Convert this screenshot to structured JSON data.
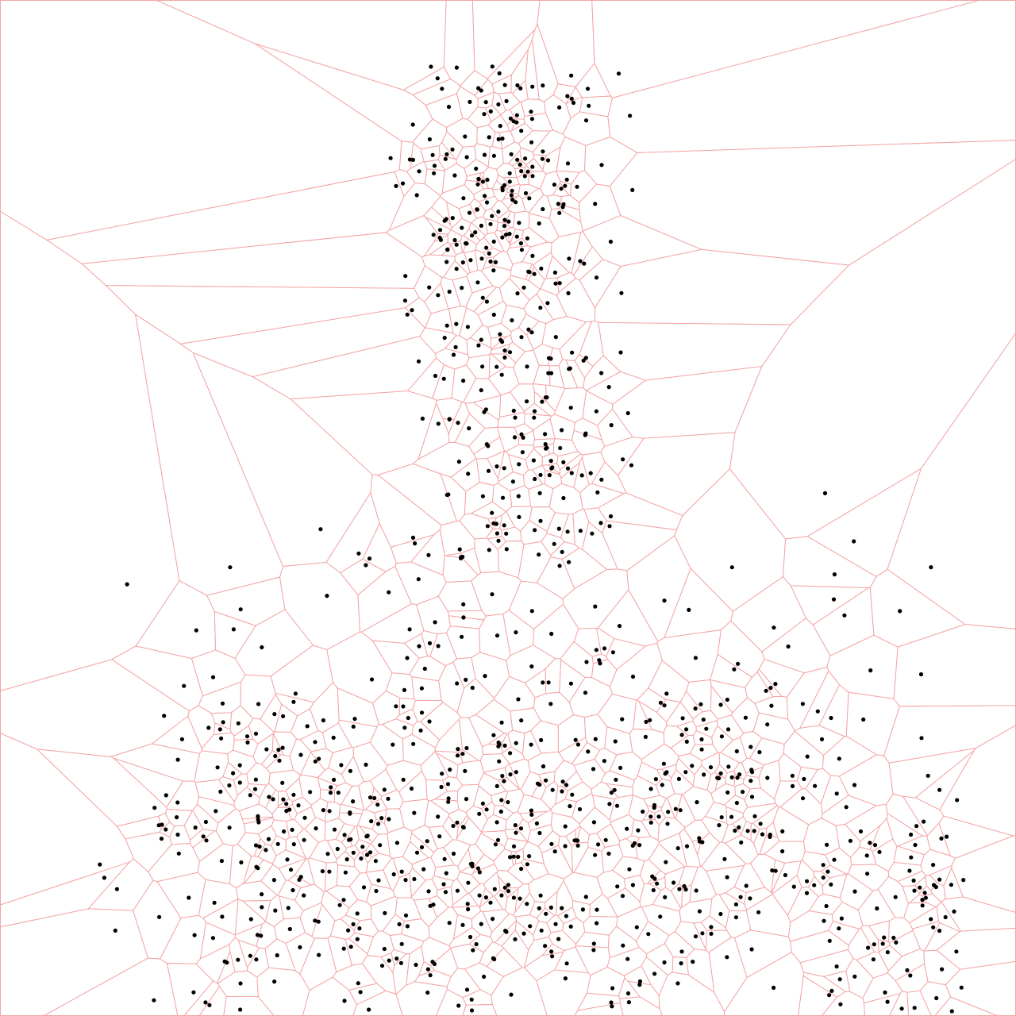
{
  "diagram": {
    "type": "voronoi",
    "background_color": "#ffffff",
    "edge_color": "#f4a4a4",
    "point_color": "#000000"
  }
}
